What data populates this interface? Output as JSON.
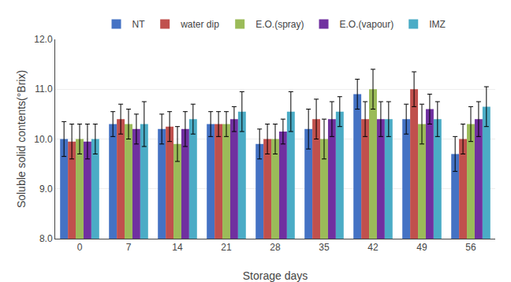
{
  "chart_data": {
    "type": "bar",
    "xlabel": "Storage days",
    "ylabel": "Soluble solid contents(°Brix)",
    "categories": [
      0,
      7,
      14,
      21,
      28,
      35,
      42,
      49,
      56
    ],
    "series": [
      {
        "name": "NT",
        "color": "#4472C4",
        "values": [
          10.0,
          10.3,
          10.2,
          10.3,
          9.9,
          10.2,
          10.9,
          10.4,
          9.7
        ],
        "errors": [
          0.35,
          0.25,
          0.3,
          0.25,
          0.3,
          0.4,
          0.3,
          0.3,
          0.35
        ]
      },
      {
        "name": "water dip",
        "color": "#C0504D",
        "values": [
          9.95,
          10.4,
          10.25,
          10.3,
          10.0,
          10.4,
          10.4,
          11.0,
          10.0
        ],
        "errors": [
          0.35,
          0.3,
          0.3,
          0.25,
          0.3,
          0.4,
          0.35,
          0.35,
          0.3
        ]
      },
      {
        "name": "E.O.(spray)",
        "color": "#9BBB59",
        "values": [
          10.0,
          10.3,
          9.9,
          10.3,
          10.0,
          10.0,
          11.0,
          10.3,
          10.3
        ],
        "errors": [
          0.3,
          0.3,
          0.35,
          0.25,
          0.3,
          0.4,
          0.4,
          0.4,
          0.35
        ]
      },
      {
        "name": "E.O.(vapour)",
        "color": "#7030A0",
        "values": [
          9.95,
          10.2,
          10.2,
          10.4,
          10.15,
          10.4,
          10.4,
          10.6,
          10.4
        ],
        "errors": [
          0.35,
          0.3,
          0.35,
          0.25,
          0.25,
          0.35,
          0.35,
          0.3,
          0.35
        ]
      },
      {
        "name": "IMZ",
        "color": "#4BACC6",
        "values": [
          10.0,
          10.3,
          10.4,
          10.55,
          10.55,
          10.55,
          10.4,
          10.4,
          10.65
        ],
        "errors": [
          0.3,
          0.45,
          0.3,
          0.4,
          0.4,
          0.3,
          0.35,
          0.35,
          0.4
        ]
      }
    ],
    "ylim": [
      8.0,
      12.0
    ],
    "yticks": [
      {
        "value": 8.0,
        "label": "8.0"
      },
      {
        "value": 9.0,
        "label": "9.0"
      },
      {
        "value": 10.0,
        "label": "10.0"
      },
      {
        "value": 11.0,
        "label": "11.0"
      },
      {
        "value": 12.0,
        "label": "12.0"
      }
    ],
    "grid": true,
    "legend": "top"
  }
}
